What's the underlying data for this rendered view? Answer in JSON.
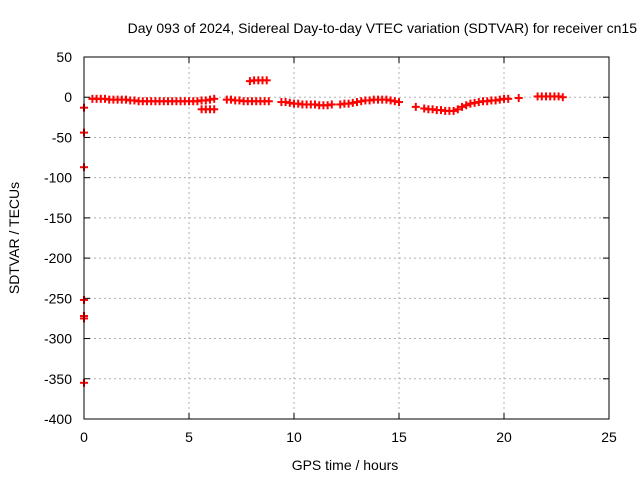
{
  "chart_data": {
    "type": "scatter",
    "title": "Day 093 of 2024, Sidereal Day-to-day VTEC variation (SDTVAR) for receiver cn15",
    "xlabel": "GPS time / hours",
    "ylabel": "SDTVAR / TECUs",
    "xlim": [
      0,
      25
    ],
    "ylim": [
      -400,
      50
    ],
    "xticks": [
      0,
      5,
      10,
      15,
      20,
      25
    ],
    "yticks": [
      50,
      0,
      -50,
      -100,
      -150,
      -200,
      -250,
      -300,
      -350,
      -400
    ],
    "grid": true,
    "marker": "+",
    "color": "#ff0000",
    "series": [
      {
        "name": "SDTVAR",
        "x": [
          0.0,
          0.0,
          0.0,
          0.0,
          0.0,
          0.0,
          0.0,
          0.4,
          0.6,
          0.8,
          1.0,
          1.2,
          1.4,
          1.6,
          1.8,
          2.0,
          2.2,
          2.4,
          2.6,
          2.8,
          3.0,
          3.2,
          3.4,
          3.6,
          3.8,
          4.0,
          4.2,
          4.4,
          4.6,
          4.8,
          5.0,
          5.2,
          5.4,
          5.6,
          5.8,
          6.0,
          6.2,
          5.6,
          5.8,
          6.0,
          6.2,
          6.8,
          7.0,
          7.2,
          7.4,
          7.6,
          7.8,
          8.0,
          8.2,
          8.4,
          8.6,
          8.8,
          7.9,
          8.1,
          8.3,
          8.5,
          8.7,
          9.4,
          9.6,
          9.8,
          10.0,
          10.2,
          10.4,
          10.6,
          10.8,
          11.0,
          11.2,
          11.4,
          11.6,
          11.8,
          12.2,
          12.4,
          12.6,
          12.8,
          13.0,
          13.2,
          13.4,
          13.6,
          13.8,
          14.0,
          14.2,
          14.4,
          14.6,
          14.8,
          15.0,
          15.8,
          16.2,
          16.4,
          16.6,
          16.8,
          17.0,
          17.2,
          17.4,
          17.6,
          17.8,
          18.0,
          18.2,
          18.4,
          18.6,
          18.8,
          19.0,
          19.2,
          19.4,
          19.6,
          19.8,
          20.0,
          20.2,
          20.7,
          21.6,
          21.8,
          22.0,
          22.2,
          22.4,
          22.6,
          22.8
        ],
        "y": [
          -13,
          -44,
          -87,
          -252,
          -272,
          -275,
          -355,
          -2,
          -2,
          -2,
          -2,
          -3,
          -3,
          -3,
          -3,
          -3,
          -4,
          -4,
          -5,
          -5,
          -5,
          -5,
          -5,
          -5,
          -5,
          -5,
          -5,
          -5,
          -5,
          -5,
          -5,
          -5,
          -5,
          -4,
          -4,
          -3,
          -2,
          -15,
          -15,
          -15,
          -15,
          -3,
          -3,
          -4,
          -4,
          -5,
          -5,
          -5,
          -5,
          -5,
          -5,
          -5,
          20,
          21,
          21,
          21,
          21,
          -6,
          -6,
          -7,
          -8,
          -8,
          -9,
          -9,
          -9,
          -9,
          -10,
          -10,
          -10,
          -9,
          -9,
          -8,
          -8,
          -7,
          -6,
          -5,
          -4,
          -4,
          -3,
          -3,
          -3,
          -3,
          -4,
          -5,
          -6,
          -12,
          -14,
          -15,
          -15,
          -16,
          -16,
          -17,
          -17,
          -17,
          -15,
          -12,
          -10,
          -8,
          -7,
          -6,
          -5,
          -5,
          -4,
          -4,
          -3,
          -2,
          -2,
          -1,
          1,
          1,
          1,
          1,
          1,
          1,
          0
        ]
      }
    ]
  }
}
